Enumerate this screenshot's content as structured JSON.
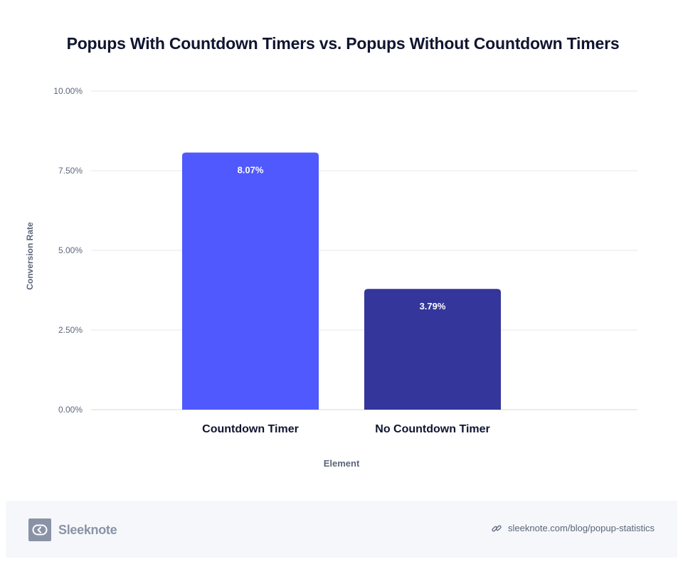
{
  "chart_data": {
    "type": "bar",
    "title": "Popups With Countdown Timers vs. Popups Without Countdown Timers",
    "xlabel": "Element",
    "ylabel": "Conversion Rate",
    "categories": [
      "Countdown Timer",
      "No Countdown Timer"
    ],
    "values": [
      8.07,
      3.79
    ],
    "value_labels": [
      "8.07%",
      "3.79%"
    ],
    "bar_colors": [
      "#5059fe",
      "#34369b"
    ],
    "ylim": [
      0,
      10
    ],
    "yticks": [
      0,
      2.5,
      5,
      7.5,
      10
    ],
    "ytick_labels": [
      "0.00%",
      "2.50%",
      "5.00%",
      "7.50%",
      "10.00%"
    ],
    "grid": true,
    "legend": false
  },
  "footer": {
    "brand": "Sleeknote",
    "source_url": "sleeknote.com/blog/popup-statistics",
    "logo_icon": "sleeknote-logo-icon",
    "link_icon": "link-icon"
  },
  "colors": {
    "title": "#101530",
    "axis_text": "#5b6679",
    "grid": "#e4e7ec",
    "footer_bg": "#f5f7fa",
    "logo": "#8a93a6"
  }
}
